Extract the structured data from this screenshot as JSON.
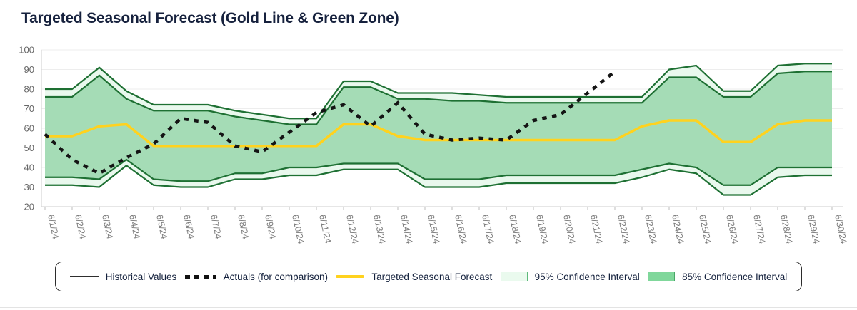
{
  "title": "Targeted Seasonal Forecast (Gold Line & Green Zone)",
  "y_axis": {
    "tick_labels": [
      "100",
      "90",
      "80",
      "70",
      "60",
      "50",
      "40",
      "30",
      "20"
    ],
    "min": 20,
    "max": 100
  },
  "chart_data": {
    "type": "line",
    "x": [
      "6/1/24",
      "6/2/24",
      "6/3/24",
      "6/4/24",
      "6/5/24",
      "6/6/24",
      "6/7/24",
      "6/8/24",
      "6/9/24",
      "6/10/24",
      "6/11/24",
      "6/12/24",
      "6/13/24",
      "6/14/24",
      "6/15/24",
      "6/16/24",
      "6/17/24",
      "6/18/24",
      "6/19/24",
      "6/20/24",
      "6/21/24",
      "6/22/24",
      "6/23/24",
      "6/24/24",
      "6/25/24",
      "6/26/24",
      "6/27/24",
      "6/28/24",
      "6/29/24",
      "6/30/24"
    ],
    "ylim": [
      20,
      100
    ],
    "grid": true,
    "legend_position": "bottom",
    "series": [
      {
        "name": "Historical Values",
        "style": "solid-black-line",
        "values": []
      },
      {
        "name": "Actuals (for comparison)",
        "style": "dotted-black-line",
        "values": [
          57,
          44,
          37,
          45,
          52,
          65,
          63,
          51,
          48,
          58,
          68,
          72,
          61,
          73,
          57,
          54,
          55,
          54,
          64,
          67,
          78,
          89
        ]
      },
      {
        "name": "Targeted Seasonal Forecast",
        "style": "gold-line",
        "values": [
          56,
          56,
          61,
          62,
          51,
          51,
          51,
          51,
          51,
          51,
          51,
          62,
          62,
          56,
          54,
          54,
          54,
          54,
          54,
          54,
          54,
          54,
          61,
          64,
          64,
          53,
          53,
          62,
          64,
          64
        ]
      },
      {
        "name": "95% Confidence Interval",
        "style": "band-light-green",
        "upper": [
          80,
          80,
          91,
          79,
          72,
          72,
          72,
          69,
          67,
          65,
          65,
          84,
          84,
          78,
          78,
          78,
          77,
          76,
          76,
          76,
          76,
          76,
          76,
          90,
          92,
          79,
          79,
          92,
          93,
          93
        ],
        "lower": [
          31,
          31,
          30,
          41,
          31,
          30,
          30,
          34,
          34,
          36,
          36,
          39,
          39,
          39,
          30,
          30,
          30,
          32,
          32,
          32,
          32,
          32,
          35,
          39,
          37,
          26,
          26,
          35,
          36,
          36
        ]
      },
      {
        "name": "85% Confidence Interval",
        "style": "band-medium-green",
        "upper": [
          76,
          76,
          87,
          75,
          69,
          69,
          69,
          66,
          64,
          62,
          62,
          81,
          81,
          75,
          75,
          74,
          74,
          73,
          73,
          73,
          73,
          73,
          73,
          86,
          86,
          76,
          76,
          88,
          89,
          89
        ],
        "lower": [
          35,
          35,
          34,
          44,
          34,
          33,
          33,
          37,
          37,
          40,
          40,
          42,
          42,
          42,
          34,
          34,
          34,
          36,
          36,
          36,
          36,
          36,
          39,
          42,
          40,
          31,
          31,
          40,
          40,
          40
        ]
      }
    ]
  },
  "legend": {
    "items": [
      {
        "label": "Historical Values",
        "swatch": "solid-black-line"
      },
      {
        "label": "Actuals (for comparison)",
        "swatch": "dotted-black-line"
      },
      {
        "label": "Targeted Seasonal Forecast",
        "swatch": "gold-line"
      },
      {
        "label": "95% Confidence Interval",
        "swatch": "light-green-box"
      },
      {
        "label": "85% Confidence Interval",
        "swatch": "medium-green-box"
      }
    ]
  },
  "colors": {
    "title_text": "#16213d",
    "gold_line": "#ffd21e",
    "actuals_line": "#141414",
    "band_edge_stroke": "#1e7033",
    "band_95_fill": "#e9f8ed",
    "band_85_fill": "#a5dcb6",
    "axis_text": "#7d7d7d",
    "gridline": "#ededed"
  }
}
